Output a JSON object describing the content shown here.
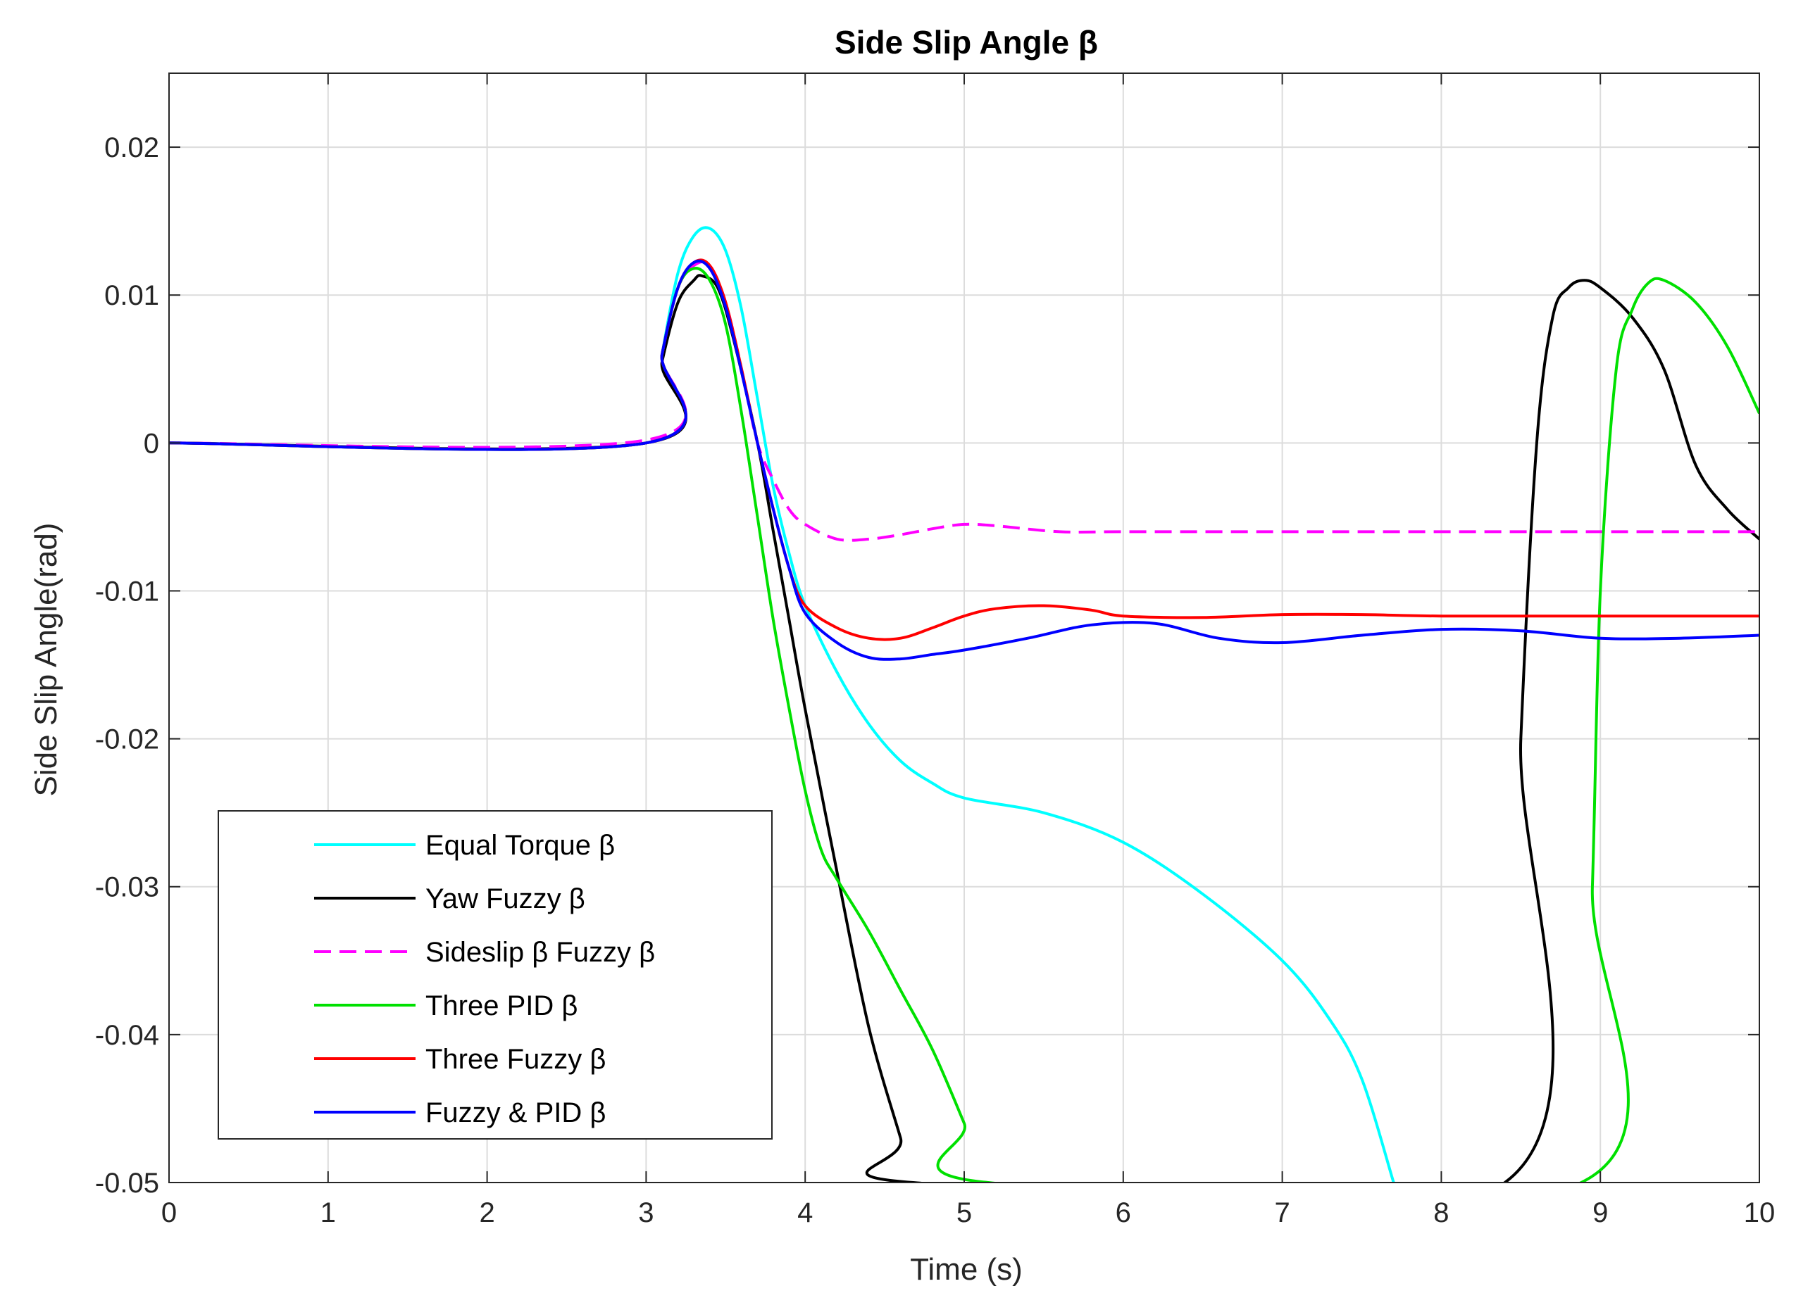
{
  "chart_data": {
    "type": "line",
    "title": "Side Slip Angle β",
    "xlabel": "Time (s)",
    "ylabel": "Side Slip Angle(rad)",
    "xlim": [
      0,
      10
    ],
    "ylim": [
      -0.05,
      0.025
    ],
    "xticks": [
      0,
      1,
      2,
      3,
      4,
      5,
      6,
      7,
      8,
      9,
      10
    ],
    "xtick_labels": [
      "0",
      "1",
      "2",
      "3",
      "4",
      "5",
      "6",
      "7",
      "8",
      "9",
      "10"
    ],
    "yticks": [
      0.02,
      0.01,
      0,
      -0.01,
      -0.02,
      -0.03,
      -0.04,
      -0.05
    ],
    "ytick_labels": [
      "0.02",
      "0.01",
      "0",
      "-0.01",
      "-0.02",
      "-0.03",
      "-0.04",
      "-0.05"
    ],
    "grid": true,
    "legend_position": "bottom-left",
    "series": [
      {
        "name": "Equal Torque β",
        "color": "#00FFFF",
        "dash": "solid",
        "points": [
          [
            0,
            0
          ],
          [
            3,
            0
          ],
          [
            3.1,
            0.006
          ],
          [
            3.2,
            0.0115
          ],
          [
            3.3,
            0.014
          ],
          [
            3.4,
            0.0145
          ],
          [
            3.5,
            0.013
          ],
          [
            3.6,
            0.009
          ],
          [
            3.7,
            0.003
          ],
          [
            3.8,
            -0.003
          ],
          [
            3.9,
            -0.0075
          ],
          [
            4.0,
            -0.011
          ],
          [
            4.2,
            -0.0155
          ],
          [
            4.4,
            -0.019
          ],
          [
            4.6,
            -0.0215
          ],
          [
            4.8,
            -0.023
          ],
          [
            5.0,
            -0.024
          ],
          [
            5.5,
            -0.025
          ],
          [
            6.0,
            -0.027
          ],
          [
            6.5,
            -0.0305
          ],
          [
            7.0,
            -0.035
          ],
          [
            7.3,
            -0.039
          ],
          [
            7.5,
            -0.043
          ],
          [
            7.7,
            -0.05
          ]
        ]
      },
      {
        "name": "Yaw Fuzzy β",
        "color": "#000000",
        "dash": "solid",
        "points": [
          [
            0,
            0
          ],
          [
            3,
            0
          ],
          [
            3.1,
            0.0055
          ],
          [
            3.2,
            0.0095
          ],
          [
            3.3,
            0.011
          ],
          [
            3.35,
            0.0113
          ],
          [
            3.45,
            0.0105
          ],
          [
            3.55,
            0.007
          ],
          [
            3.7,
            0.0
          ],
          [
            3.8,
            -0.006
          ],
          [
            3.9,
            -0.012
          ],
          [
            4.0,
            -0.018
          ],
          [
            4.2,
            -0.029
          ],
          [
            4.4,
            -0.0395
          ],
          [
            4.6,
            -0.047
          ],
          [
            4.68,
            -0.05
          ],
          [
            8.4,
            -0.05
          ],
          [
            8.5,
            -0.02
          ],
          [
            8.6,
            0.0
          ],
          [
            8.7,
            0.0085
          ],
          [
            8.8,
            0.0105
          ],
          [
            8.9,
            0.011
          ],
          [
            9.0,
            0.0105
          ],
          [
            9.2,
            0.0085
          ],
          [
            9.4,
            0.005
          ],
          [
            9.6,
            -0.0015
          ],
          [
            9.8,
            -0.0045
          ],
          [
            10,
            -0.0065
          ]
        ]
      },
      {
        "name": "Sideslip β Fuzzy β",
        "color": "#FF00FF",
        "dash": "dashed",
        "points": [
          [
            0,
            0
          ],
          [
            3,
            0.0002
          ],
          [
            3.1,
            0.006
          ],
          [
            3.2,
            0.0105
          ],
          [
            3.3,
            0.012
          ],
          [
            3.4,
            0.012
          ],
          [
            3.5,
            0.0095
          ],
          [
            3.6,
            0.005
          ],
          [
            3.7,
            0.0
          ],
          [
            3.8,
            -0.0025
          ],
          [
            3.9,
            -0.0045
          ],
          [
            4.0,
            -0.0055
          ],
          [
            4.2,
            -0.0065
          ],
          [
            4.4,
            -0.0065
          ],
          [
            4.6,
            -0.0062
          ],
          [
            4.8,
            -0.0058
          ],
          [
            5.0,
            -0.0055
          ],
          [
            5.2,
            -0.0056
          ],
          [
            5.6,
            -0.006
          ],
          [
            6.0,
            -0.006
          ],
          [
            7.0,
            -0.006
          ],
          [
            8.0,
            -0.006
          ],
          [
            9.0,
            -0.006
          ],
          [
            10,
            -0.006
          ]
        ]
      },
      {
        "name": "Three PID β",
        "color": "#00E000",
        "dash": "solid",
        "points": [
          [
            0,
            0
          ],
          [
            3,
            0
          ],
          [
            3.1,
            0.006
          ],
          [
            3.2,
            0.0105
          ],
          [
            3.3,
            0.0118
          ],
          [
            3.4,
            0.011
          ],
          [
            3.5,
            0.008
          ],
          [
            3.6,
            0.002
          ],
          [
            3.7,
            -0.005
          ],
          [
            3.8,
            -0.012
          ],
          [
            3.9,
            -0.018
          ],
          [
            4.0,
            -0.0235
          ],
          [
            4.1,
            -0.0275
          ],
          [
            4.2,
            -0.0295
          ],
          [
            4.4,
            -0.033
          ],
          [
            4.6,
            -0.037
          ],
          [
            4.8,
            -0.041
          ],
          [
            5.0,
            -0.046
          ],
          [
            5.15,
            -0.05
          ],
          [
            8.88,
            -0.05
          ],
          [
            8.95,
            -0.03
          ],
          [
            9.0,
            -0.01
          ],
          [
            9.1,
            0.005
          ],
          [
            9.2,
            0.009
          ],
          [
            9.3,
            0.0108
          ],
          [
            9.4,
            0.011
          ],
          [
            9.6,
            0.0095
          ],
          [
            9.8,
            0.0065
          ],
          [
            10,
            0.002
          ]
        ]
      },
      {
        "name": "Three Fuzzy β",
        "color": "#FF0000",
        "dash": "solid",
        "points": [
          [
            0,
            0
          ],
          [
            3,
            0
          ],
          [
            3.1,
            0.006
          ],
          [
            3.2,
            0.0105
          ],
          [
            3.3,
            0.0122
          ],
          [
            3.4,
            0.012
          ],
          [
            3.5,
            0.0095
          ],
          [
            3.6,
            0.005
          ],
          [
            3.7,
            0.0
          ],
          [
            3.8,
            -0.0045
          ],
          [
            3.9,
            -0.0085
          ],
          [
            4.0,
            -0.011
          ],
          [
            4.2,
            -0.0125
          ],
          [
            4.4,
            -0.0132
          ],
          [
            4.6,
            -0.0132
          ],
          [
            4.8,
            -0.0125
          ],
          [
            5.0,
            -0.0117
          ],
          [
            5.2,
            -0.0112
          ],
          [
            5.5,
            -0.011
          ],
          [
            5.8,
            -0.0113
          ],
          [
            6.0,
            -0.0117
          ],
          [
            6.5,
            -0.0118
          ],
          [
            7.0,
            -0.0116
          ],
          [
            7.5,
            -0.0116
          ],
          [
            8.0,
            -0.0117
          ],
          [
            9.0,
            -0.0117
          ],
          [
            10,
            -0.0117
          ]
        ]
      },
      {
        "name": "Fuzzy & PID β",
        "color": "#0000FF",
        "dash": "solid",
        "points": [
          [
            0,
            0
          ],
          [
            3,
            0
          ],
          [
            3.1,
            0.006
          ],
          [
            3.2,
            0.0105
          ],
          [
            3.3,
            0.0122
          ],
          [
            3.4,
            0.0118
          ],
          [
            3.5,
            0.0092
          ],
          [
            3.6,
            0.0048
          ],
          [
            3.7,
            0.0
          ],
          [
            3.8,
            -0.0045
          ],
          [
            3.9,
            -0.0085
          ],
          [
            4.0,
            -0.0115
          ],
          [
            4.2,
            -0.0135
          ],
          [
            4.4,
            -0.0145
          ],
          [
            4.6,
            -0.0146
          ],
          [
            4.8,
            -0.0143
          ],
          [
            5.0,
            -0.014
          ],
          [
            5.4,
            -0.0132
          ],
          [
            5.8,
            -0.0123
          ],
          [
            6.2,
            -0.0122
          ],
          [
            6.6,
            -0.0132
          ],
          [
            7.0,
            -0.0135
          ],
          [
            7.5,
            -0.013
          ],
          [
            8.0,
            -0.0126
          ],
          [
            8.5,
            -0.0127
          ],
          [
            9.0,
            -0.0132
          ],
          [
            9.5,
            -0.0132
          ],
          [
            10,
            -0.013
          ]
        ]
      }
    ]
  }
}
